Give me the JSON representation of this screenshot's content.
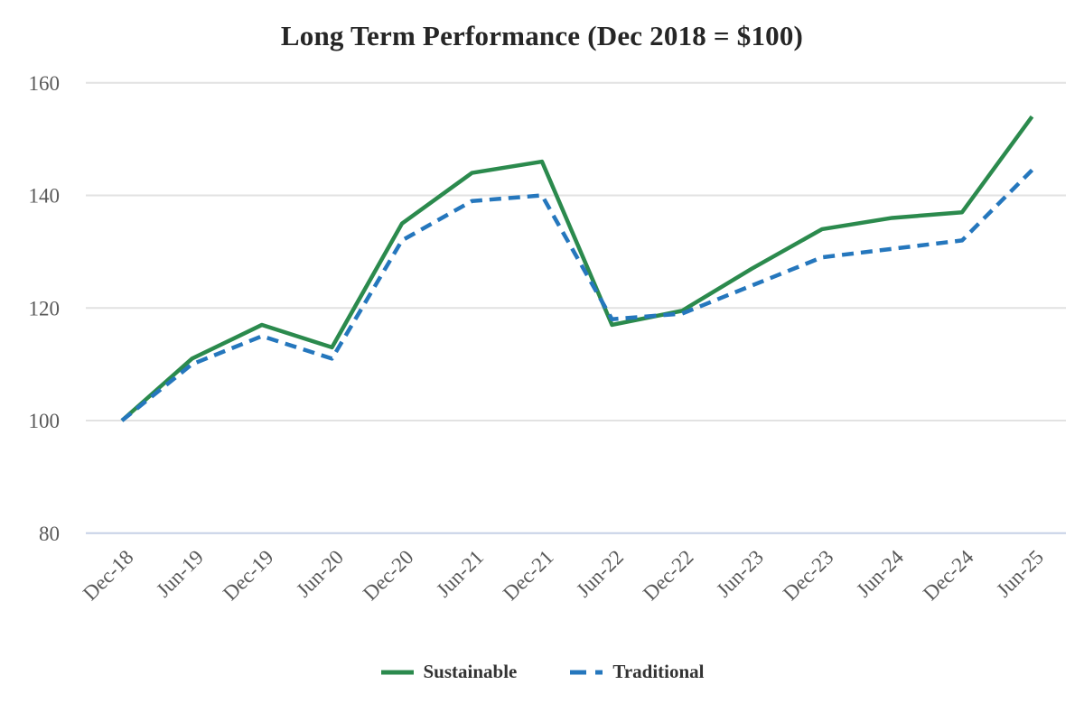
{
  "chart_data": {
    "type": "line",
    "title": "Long Term Performance (Dec 2018 = $100)",
    "categories": [
      "Dec-18",
      "Jun-19",
      "Dec-19",
      "Jun-20",
      "Dec-20",
      "Jun-21",
      "Dec-21",
      "Jun-22",
      "Dec-22",
      "Jun-23",
      "Dec-23",
      "Jun-24",
      "Dec-24",
      "Jun-25"
    ],
    "series": [
      {
        "name": "Sustainable",
        "color": "#2b8a4d",
        "line_style": "solid",
        "values": [
          100,
          111,
          117,
          113,
          135,
          144,
          146,
          117,
          119.5,
          127,
          134,
          136,
          137,
          154
        ]
      },
      {
        "name": "Traditional",
        "color": "#2577bd",
        "line_style": "dashed",
        "values": [
          100,
          110,
          115,
          111,
          132,
          139,
          140,
          118,
          119,
          124,
          129,
          130.5,
          132,
          144.5
        ]
      }
    ],
    "y_ticks": [
      160,
      140,
      120,
      100,
      80
    ],
    "ylim": [
      80,
      160
    ],
    "xlabel": "",
    "ylabel": "",
    "grid": "horizontal",
    "legend_position": "bottom",
    "grid_color": "#e2e2e2",
    "baseline_color": "#c6d0e6",
    "tick_label_color": "#595959"
  }
}
